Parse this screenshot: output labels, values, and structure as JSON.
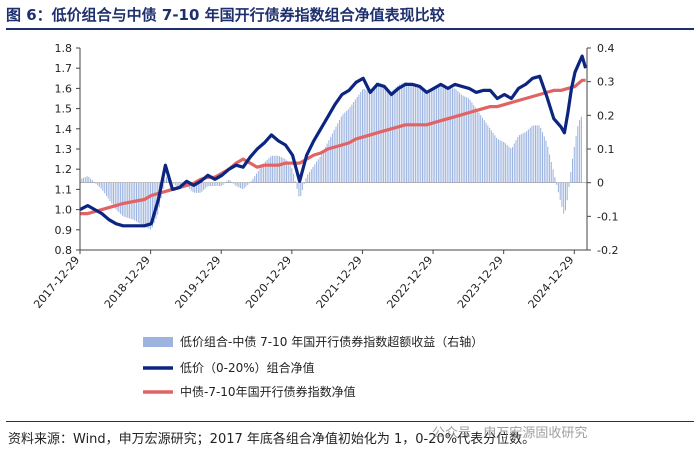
{
  "title": "图 6：低价组合与中债 7-10 年国开行债券指数组合净值表现比较",
  "source": "资料来源：Wind，申万宏源研究；2017 年底各组合净值初始化为 1，0-20%代表分位数。",
  "watermark": "公众号 · 申万宏源固收研究",
  "colors": {
    "title": "#1e2f6e",
    "excess": "#9db4e0",
    "lowprice": "#0c2580",
    "bond": "#e06464"
  },
  "chart_data": {
    "type": "line",
    "x_ticks": [
      "2017-12-29",
      "2018-12-29",
      "2019-12-29",
      "2020-12-29",
      "2021-12-29",
      "2022-12-29",
      "2023-12-29",
      "2024-12-29"
    ],
    "y_left": {
      "range": [
        0.8,
        1.8
      ],
      "ticks": [
        "0.8",
        "0.9",
        "1.0",
        "1.1",
        "1.2",
        "1.3",
        "1.4",
        "1.5",
        "1.6",
        "1.7",
        "1.8"
      ]
    },
    "y_right": {
      "range": [
        -0.2,
        0.4
      ],
      "ticks": [
        "-0.2",
        "-0.1",
        "0",
        "0.1",
        "0.2",
        "0.3",
        "0.4"
      ]
    },
    "legend": [
      "低价组合-中债 7-10 年国开行债券指数超额收益（右轴）",
      "低价（0-20%）组合净值",
      "中债-7-10年国开行债券指数净值"
    ],
    "series": [
      {
        "name": "低价组合-中债 7-10 年国开行债券指数超额收益（右轴）",
        "axis": "right",
        "type": "bar",
        "points": [
          [
            2017.99,
            0.01
          ],
          [
            2018.1,
            0.02
          ],
          [
            2018.2,
            0.0
          ],
          [
            2018.3,
            -0.02
          ],
          [
            2018.4,
            -0.05
          ],
          [
            2018.5,
            -0.08
          ],
          [
            2018.6,
            -0.1
          ],
          [
            2018.75,
            -0.11
          ],
          [
            2018.9,
            -0.13
          ],
          [
            2019.0,
            -0.14
          ],
          [
            2019.1,
            -0.09
          ],
          [
            2019.2,
            0.02
          ],
          [
            2019.3,
            0.0
          ],
          [
            2019.4,
            -0.02
          ],
          [
            2019.5,
            -0.01
          ],
          [
            2019.6,
            -0.03
          ],
          [
            2019.7,
            -0.03
          ],
          [
            2019.8,
            -0.01
          ],
          [
            2019.9,
            -0.01
          ],
          [
            2020.0,
            -0.01
          ],
          [
            2020.1,
            0.01
          ],
          [
            2020.2,
            -0.01
          ],
          [
            2020.3,
            -0.02
          ],
          [
            2020.4,
            0.0
          ],
          [
            2020.5,
            0.03
          ],
          [
            2020.6,
            0.06
          ],
          [
            2020.7,
            0.08
          ],
          [
            2020.8,
            0.08
          ],
          [
            2020.9,
            0.07
          ],
          [
            2021.0,
            0.04
          ],
          [
            2021.1,
            -0.05
          ],
          [
            2021.2,
            0.02
          ],
          [
            2021.3,
            0.05
          ],
          [
            2021.4,
            0.08
          ],
          [
            2021.5,
            0.12
          ],
          [
            2021.6,
            0.16
          ],
          [
            2021.7,
            0.2
          ],
          [
            2021.8,
            0.22
          ],
          [
            2021.9,
            0.25
          ],
          [
            2022.0,
            0.28
          ],
          [
            2022.1,
            0.27
          ],
          [
            2022.2,
            0.3
          ],
          [
            2022.3,
            0.29
          ],
          [
            2022.4,
            0.27
          ],
          [
            2022.5,
            0.29
          ],
          [
            2022.6,
            0.3
          ],
          [
            2022.7,
            0.29
          ],
          [
            2022.8,
            0.28
          ],
          [
            2022.9,
            0.27
          ],
          [
            2023.0,
            0.28
          ],
          [
            2023.1,
            0.29
          ],
          [
            2023.2,
            0.28
          ],
          [
            2023.3,
            0.28
          ],
          [
            2023.4,
            0.26
          ],
          [
            2023.5,
            0.25
          ],
          [
            2023.6,
            0.22
          ],
          [
            2023.7,
            0.19
          ],
          [
            2023.8,
            0.16
          ],
          [
            2023.9,
            0.13
          ],
          [
            2024.0,
            0.12
          ],
          [
            2024.1,
            0.1
          ],
          [
            2024.2,
            0.14
          ],
          [
            2024.3,
            0.15
          ],
          [
            2024.4,
            0.17
          ],
          [
            2024.5,
            0.17
          ],
          [
            2024.6,
            0.12
          ],
          [
            2024.7,
            0.03
          ],
          [
            2024.8,
            -0.06
          ],
          [
            2024.85,
            -0.1
          ],
          [
            2024.9,
            -0.04
          ],
          [
            2024.95,
            0.05
          ],
          [
            2025.0,
            0.12
          ],
          [
            2025.05,
            0.18
          ],
          [
            2025.1,
            0.2
          ]
        ]
      },
      {
        "name": "低价（0-20%）组合净值",
        "axis": "left",
        "points": [
          [
            2017.99,
            1.0
          ],
          [
            2018.1,
            1.02
          ],
          [
            2018.2,
            1.0
          ],
          [
            2018.3,
            0.98
          ],
          [
            2018.4,
            0.95
          ],
          [
            2018.5,
            0.93
          ],
          [
            2018.6,
            0.92
          ],
          [
            2018.75,
            0.92
          ],
          [
            2018.9,
            0.92
          ],
          [
            2019.0,
            0.93
          ],
          [
            2019.1,
            1.05
          ],
          [
            2019.2,
            1.22
          ],
          [
            2019.3,
            1.1
          ],
          [
            2019.4,
            1.11
          ],
          [
            2019.5,
            1.14
          ],
          [
            2019.6,
            1.12
          ],
          [
            2019.7,
            1.14
          ],
          [
            2019.8,
            1.17
          ],
          [
            2019.9,
            1.15
          ],
          [
            2020.0,
            1.17
          ],
          [
            2020.1,
            1.2
          ],
          [
            2020.2,
            1.22
          ],
          [
            2020.3,
            1.21
          ],
          [
            2020.4,
            1.26
          ],
          [
            2020.5,
            1.3
          ],
          [
            2020.6,
            1.33
          ],
          [
            2020.7,
            1.37
          ],
          [
            2020.8,
            1.34
          ],
          [
            2020.9,
            1.32
          ],
          [
            2021.0,
            1.27
          ],
          [
            2021.1,
            1.14
          ],
          [
            2021.2,
            1.27
          ],
          [
            2021.3,
            1.34
          ],
          [
            2021.4,
            1.4
          ],
          [
            2021.5,
            1.46
          ],
          [
            2021.6,
            1.52
          ],
          [
            2021.7,
            1.57
          ],
          [
            2021.8,
            1.59
          ],
          [
            2021.9,
            1.63
          ],
          [
            2022.0,
            1.65
          ],
          [
            2022.1,
            1.58
          ],
          [
            2022.2,
            1.62
          ],
          [
            2022.3,
            1.61
          ],
          [
            2022.4,
            1.57
          ],
          [
            2022.5,
            1.6
          ],
          [
            2022.6,
            1.62
          ],
          [
            2022.7,
            1.62
          ],
          [
            2022.8,
            1.61
          ],
          [
            2022.9,
            1.58
          ],
          [
            2023.0,
            1.6
          ],
          [
            2023.1,
            1.62
          ],
          [
            2023.2,
            1.6
          ],
          [
            2023.3,
            1.62
          ],
          [
            2023.4,
            1.61
          ],
          [
            2023.5,
            1.6
          ],
          [
            2023.6,
            1.58
          ],
          [
            2023.7,
            1.59
          ],
          [
            2023.8,
            1.59
          ],
          [
            2023.9,
            1.55
          ],
          [
            2024.0,
            1.57
          ],
          [
            2024.1,
            1.55
          ],
          [
            2024.2,
            1.6
          ],
          [
            2024.3,
            1.62
          ],
          [
            2024.4,
            1.65
          ],
          [
            2024.5,
            1.66
          ],
          [
            2024.6,
            1.56
          ],
          [
            2024.7,
            1.45
          ],
          [
            2024.8,
            1.41
          ],
          [
            2024.85,
            1.38
          ],
          [
            2024.9,
            1.48
          ],
          [
            2024.95,
            1.6
          ],
          [
            2025.0,
            1.68
          ],
          [
            2025.05,
            1.72
          ],
          [
            2025.1,
            1.76
          ],
          [
            2025.15,
            1.7
          ]
        ]
      },
      {
        "name": "中债-7-10年国开行债券指数净值",
        "axis": "left",
        "points": [
          [
            2017.99,
            0.98
          ],
          [
            2018.1,
            0.98
          ],
          [
            2018.2,
            0.99
          ],
          [
            2018.3,
            1.0
          ],
          [
            2018.4,
            1.01
          ],
          [
            2018.5,
            1.02
          ],
          [
            2018.6,
            1.03
          ],
          [
            2018.75,
            1.04
          ],
          [
            2018.9,
            1.05
          ],
          [
            2019.0,
            1.07
          ],
          [
            2019.1,
            1.08
          ],
          [
            2019.2,
            1.09
          ],
          [
            2019.3,
            1.1
          ],
          [
            2019.4,
            1.11
          ],
          [
            2019.5,
            1.12
          ],
          [
            2019.6,
            1.13
          ],
          [
            2019.7,
            1.15
          ],
          [
            2019.8,
            1.16
          ],
          [
            2019.9,
            1.16
          ],
          [
            2020.0,
            1.18
          ],
          [
            2020.1,
            1.2
          ],
          [
            2020.2,
            1.23
          ],
          [
            2020.3,
            1.25
          ],
          [
            2020.4,
            1.23
          ],
          [
            2020.5,
            1.21
          ],
          [
            2020.6,
            1.22
          ],
          [
            2020.7,
            1.22
          ],
          [
            2020.8,
            1.22
          ],
          [
            2020.9,
            1.23
          ],
          [
            2021.0,
            1.23
          ],
          [
            2021.1,
            1.23
          ],
          [
            2021.2,
            1.25
          ],
          [
            2021.3,
            1.27
          ],
          [
            2021.4,
            1.28
          ],
          [
            2021.5,
            1.3
          ],
          [
            2021.6,
            1.31
          ],
          [
            2021.7,
            1.32
          ],
          [
            2021.8,
            1.33
          ],
          [
            2021.9,
            1.35
          ],
          [
            2022.0,
            1.36
          ],
          [
            2022.1,
            1.37
          ],
          [
            2022.2,
            1.38
          ],
          [
            2022.3,
            1.39
          ],
          [
            2022.4,
            1.4
          ],
          [
            2022.5,
            1.41
          ],
          [
            2022.6,
            1.42
          ],
          [
            2022.7,
            1.42
          ],
          [
            2022.8,
            1.42
          ],
          [
            2022.9,
            1.42
          ],
          [
            2023.0,
            1.43
          ],
          [
            2023.1,
            1.44
          ],
          [
            2023.2,
            1.45
          ],
          [
            2023.3,
            1.46
          ],
          [
            2023.4,
            1.47
          ],
          [
            2023.5,
            1.48
          ],
          [
            2023.6,
            1.49
          ],
          [
            2023.7,
            1.5
          ],
          [
            2023.8,
            1.51
          ],
          [
            2023.9,
            1.51
          ],
          [
            2024.0,
            1.52
          ],
          [
            2024.1,
            1.53
          ],
          [
            2024.2,
            1.54
          ],
          [
            2024.3,
            1.55
          ],
          [
            2024.4,
            1.56
          ],
          [
            2024.5,
            1.57
          ],
          [
            2024.6,
            1.58
          ],
          [
            2024.7,
            1.59
          ],
          [
            2024.8,
            1.59
          ],
          [
            2024.9,
            1.6
          ],
          [
            2025.0,
            1.61
          ],
          [
            2025.1,
            1.64
          ],
          [
            2025.15,
            1.64
          ]
        ]
      }
    ]
  }
}
